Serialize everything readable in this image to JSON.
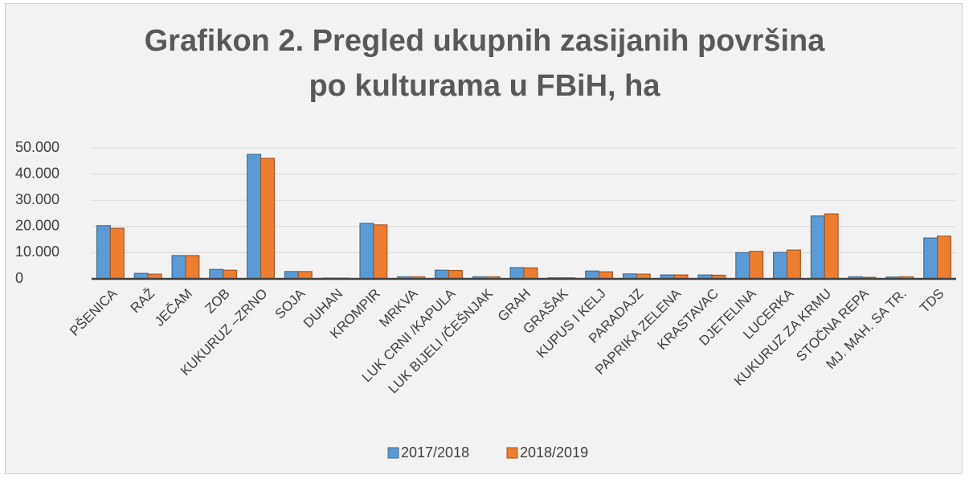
{
  "chart_data": {
    "type": "bar",
    "title": "Grafikon 2. Pregled ukupnih zasijanih površina\npo kulturama u FBiH, ha",
    "categories": [
      "PŠENICA",
      "RAŽ",
      "JEČAM",
      "ZOB",
      "KUKURUZ –ZRNO",
      "SOJA",
      "DUHAN",
      "KROMPIR",
      "MRKVA",
      "LUK CRNI /KAPULA",
      "LUK BIJELI /ČEŠNJAK",
      "GRAH",
      "GRAŠAK",
      "KUPUS I KELJ",
      "PARADAJZ",
      "PAPRIKA ZELENA",
      "KRASTAVAC",
      "DJETELINA",
      "LUCERKA",
      "KUKURUZ ZA KRMU",
      "STOČNA REPA",
      "MJ. MAH. SA TR.",
      "TDS"
    ],
    "series": [
      {
        "name": "2017/2018",
        "color": "#5b9bd5",
        "values": [
          20300,
          2100,
          8900,
          3600,
          47500,
          2800,
          300,
          21200,
          800,
          3300,
          800,
          4300,
          400,
          3000,
          1900,
          1500,
          1500,
          10000,
          10100,
          24000,
          800,
          700,
          15600
        ]
      },
      {
        "name": "2018/2019",
        "color": "#ed7d31",
        "values": [
          19300,
          1800,
          8900,
          3300,
          46000,
          2800,
          300,
          20600,
          800,
          3200,
          800,
          4200,
          400,
          2700,
          1800,
          1500,
          1400,
          10500,
          11000,
          24800,
          600,
          800,
          16300
        ]
      }
    ],
    "ylim": [
      0,
      50000
    ],
    "yticks": [
      {
        "value": 0,
        "label": "0"
      },
      {
        "value": 10000,
        "label": "10.000"
      },
      {
        "value": 20000,
        "label": "20.000"
      },
      {
        "value": 30000,
        "label": "30.000"
      },
      {
        "value": 40000,
        "label": "40.000"
      },
      {
        "value": 50000,
        "label": "50.000"
      }
    ],
    "grid": true,
    "legend": "bottom"
  }
}
